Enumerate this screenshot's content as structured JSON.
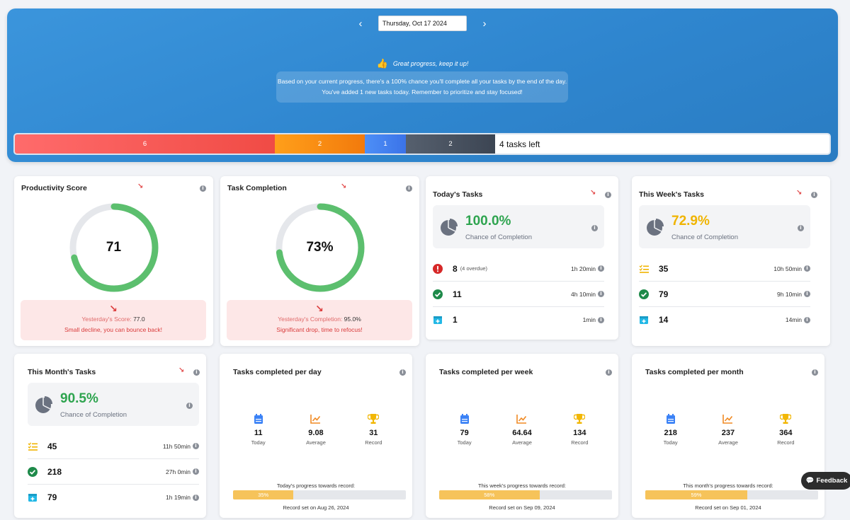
{
  "header": {
    "date_value": "Thursday, Oct 17 2024",
    "prev_symbol": "‹",
    "next_symbol": "›",
    "encouragement": "Great progress, keep it up!",
    "message_line1": "Based on your current progress, there's a 100% chance you'll complete all your tasks by the end of the day.",
    "message_line2": "You've added 1 new tasks today. Remember to prioritize and stay focused!"
  },
  "task_bar": {
    "segments": [
      {
        "label": "6",
        "count": 6,
        "color": "#f04b45"
      },
      {
        "label": "2",
        "count": 2,
        "color": "#f27a0c"
      },
      {
        "label": "1",
        "count": 1,
        "color": "#3b73e8"
      },
      {
        "label": "2",
        "count": 2,
        "color": "#3c4553"
      }
    ],
    "remaining": "4 tasks left"
  },
  "productivity": {
    "title": "Productivity Score",
    "trend": "↘",
    "value": "71",
    "ring_fraction": 0.71,
    "yesterday_label": "Yesterday's Score:",
    "yesterday_value": "77.0",
    "message": "Small decline, you can bounce back!"
  },
  "completion": {
    "title": "Task Completion",
    "trend": "↘",
    "value": "73%",
    "ring_fraction": 0.73,
    "yesterday_label": "Yesterday's Completion:",
    "yesterday_value": "95.0%",
    "message": "Significant drop, time to refocus!"
  },
  "today": {
    "title": "Today's Tasks",
    "trend": "↘",
    "chance_pct": "100.0%",
    "chance_color": "#2ea44f",
    "chance_label": "Chance of Completion",
    "rows": [
      {
        "icon": "overdue-icon",
        "count": "8",
        "sub": "(4 overdue)",
        "time": "1h 20min"
      },
      {
        "icon": "completed-icon",
        "count": "11",
        "sub": "",
        "time": "4h 10min"
      },
      {
        "icon": "added-icon",
        "count": "1",
        "sub": "",
        "time": "1min"
      }
    ]
  },
  "week": {
    "title": "This Week's Tasks",
    "trend": "↘",
    "chance_pct": "72.9%",
    "chance_color": "#f0b400",
    "chance_label": "Chance of Completion",
    "rows": [
      {
        "icon": "task-list-icon",
        "count": "35",
        "time": "10h 50min"
      },
      {
        "icon": "completed-icon",
        "count": "79",
        "time": "9h 10min"
      },
      {
        "icon": "added-icon",
        "count": "14",
        "time": "14min"
      }
    ]
  },
  "month": {
    "title": "This Month's Tasks",
    "trend": "↘",
    "chance_pct": "90.5%",
    "chance_color": "#2ea44f",
    "chance_label": "Chance of Completion",
    "rows": [
      {
        "icon": "task-list-icon",
        "count": "45",
        "time": "11h 50min"
      },
      {
        "icon": "completed-icon",
        "count": "218",
        "time": "27h 0min"
      },
      {
        "icon": "added-icon",
        "count": "79",
        "time": "1h 19min"
      }
    ]
  },
  "per_day": {
    "title": "Tasks completed per day",
    "today": "11",
    "today_label": "Today",
    "average": "9.08",
    "average_label": "Average",
    "record": "31",
    "record_label": "Record",
    "progress_label": "Today's progress towards record:",
    "progress": "35%",
    "progress_fraction": 0.35,
    "record_set": "Record set on Aug 26, 2024"
  },
  "per_week": {
    "title": "Tasks completed per week",
    "today": "79",
    "today_label": "Today",
    "average": "64.64",
    "average_label": "Average",
    "record": "134",
    "record_label": "Record",
    "progress_label": "This week's progress towards record:",
    "progress": "58%",
    "progress_fraction": 0.58,
    "record_set": "Record set on Sep 09, 2024"
  },
  "per_month": {
    "title": "Tasks completed per month",
    "today": "218",
    "today_label": "Today",
    "average": "237",
    "average_label": "Average",
    "record": "364",
    "record_label": "Record",
    "progress_label": "This month's progress towards record:",
    "progress": "59%",
    "progress_fraction": 0.59,
    "record_set": "Record set on Sep 01, 2024"
  },
  "feedback_label": "Feedback",
  "colors": {
    "ring_green": "#5cbf6e",
    "ring_track": "#e5e7eb",
    "calendar_blue": "#3b82f6",
    "average_orange": "#f08a24",
    "trophy_gold": "#f2b705"
  }
}
